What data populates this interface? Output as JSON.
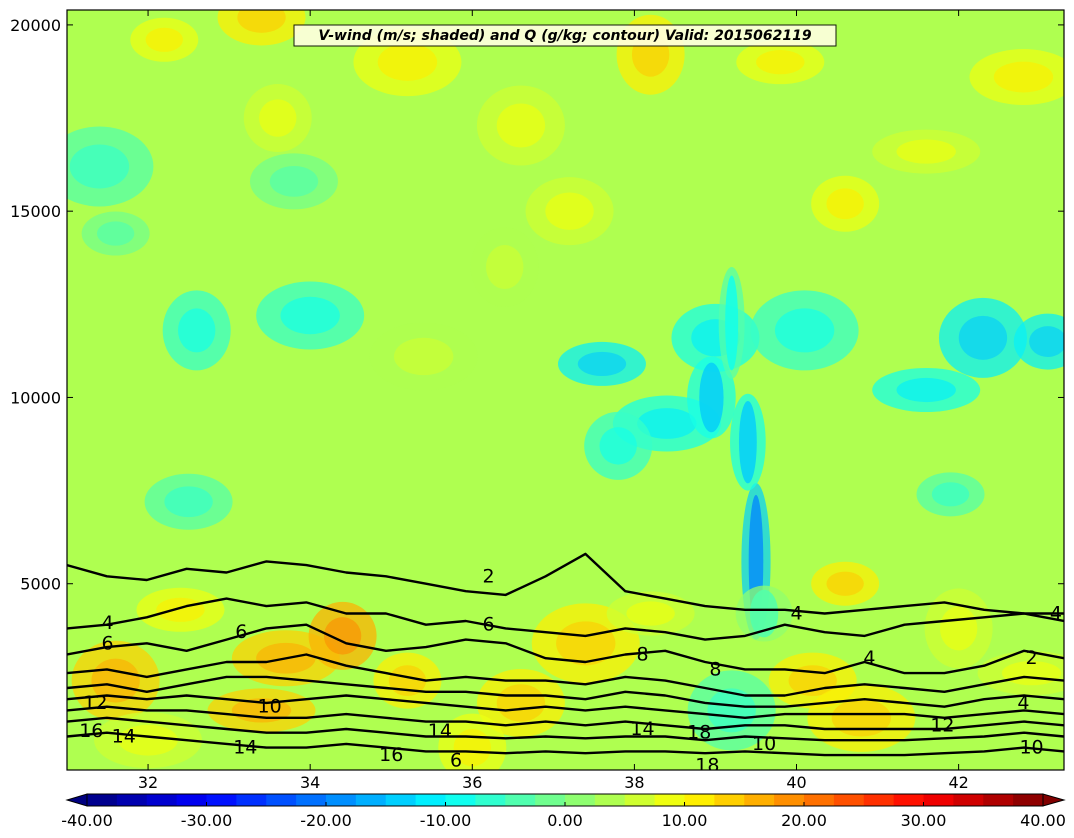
{
  "chart_data": {
    "type": "heatmap",
    "title": "V-wind (m/s; shaded) and Q (g/kg; contour) Valid: 2015062119",
    "xlabel": "",
    "ylabel": "",
    "xlim": [
      31.0,
      43.3
    ],
    "ylim": [
      0,
      20400
    ],
    "x_ticks": [
      "32",
      "34",
      "36",
      "38",
      "40",
      "42"
    ],
    "y_ticks": [
      "5000",
      "10000",
      "15000",
      "20000"
    ],
    "colorbar": {
      "min": -40,
      "max": 40,
      "step": 2.5,
      "extend": "both",
      "tick_labels": [
        "-40.00",
        "-30.00",
        "-20.00",
        "-10.00",
        "0.00",
        "10.00",
        "20.00",
        "30.00",
        "40.00"
      ]
    },
    "shaded_field": {
      "name": "V-wind (m/s)",
      "background": 3,
      "blobs": [
        {
          "x": 32.2,
          "y": 19600,
          "v": 8
        },
        {
          "x": 33.4,
          "y": 20200,
          "v": 10
        },
        {
          "x": 35.2,
          "y": 19000,
          "v": 8
        },
        {
          "x": 38.2,
          "y": 19200,
          "v": 10
        },
        {
          "x": 39.8,
          "y": 19000,
          "v": 9
        },
        {
          "x": 42.8,
          "y": 18600,
          "v": 8
        },
        {
          "x": 33.6,
          "y": 17500,
          "v": 6
        },
        {
          "x": 36.6,
          "y": 17300,
          "v": 5
        },
        {
          "x": 41.6,
          "y": 16600,
          "v": 7
        },
        {
          "x": 40.6,
          "y": 15200,
          "v": 9
        },
        {
          "x": 37.2,
          "y": 15000,
          "v": 6
        },
        {
          "x": 31.4,
          "y": 16200,
          "v": -3
        },
        {
          "x": 31.6,
          "y": 14400,
          "v": -2
        },
        {
          "x": 33.8,
          "y": 15800,
          "v": -1
        },
        {
          "x": 34.0,
          "y": 12200,
          "v": -7
        },
        {
          "x": 32.6,
          "y": 11800,
          "v": -6
        },
        {
          "x": 37.6,
          "y": 10900,
          "v": -11
        },
        {
          "x": 38.4,
          "y": 9300,
          "v": -9
        },
        {
          "x": 37.8,
          "y": 8700,
          "v": -7
        },
        {
          "x": 42.3,
          "y": 11600,
          "v": -12
        },
        {
          "x": 41.6,
          "y": 10200,
          "v": -8
        },
        {
          "x": 43.1,
          "y": 11500,
          "v": -12
        },
        {
          "x": 39.0,
          "y": 11600,
          "v": -9
        },
        {
          "x": 40.1,
          "y": 11800,
          "v": -6
        },
        {
          "x": 41.9,
          "y": 7400,
          "v": -5
        },
        {
          "x": 32.5,
          "y": 7200,
          "v": -4
        },
        {
          "x": 35.4,
          "y": 11100,
          "v": 4
        },
        {
          "x": 36.4,
          "y": 13500,
          "v": 3
        },
        {
          "x": 32.4,
          "y": 4300,
          "v": 9
        },
        {
          "x": 33.7,
          "y": 3000,
          "v": 14
        },
        {
          "x": 34.4,
          "y": 3600,
          "v": 15
        },
        {
          "x": 31.6,
          "y": 2400,
          "v": 13
        },
        {
          "x": 33.4,
          "y": 1600,
          "v": 14
        },
        {
          "x": 35.2,
          "y": 2400,
          "v": 11
        },
        {
          "x": 36.6,
          "y": 1800,
          "v": 12
        },
        {
          "x": 37.4,
          "y": 3400,
          "v": 10
        },
        {
          "x": 40.6,
          "y": 5000,
          "v": 12
        },
        {
          "x": 40.2,
          "y": 2400,
          "v": 12
        },
        {
          "x": 40.8,
          "y": 1400,
          "v": 11
        },
        {
          "x": 42.0,
          "y": 3800,
          "v": 6
        },
        {
          "x": 38.2,
          "y": 4200,
          "v": 6
        },
        {
          "x": 32.0,
          "y": 800,
          "v": 6
        },
        {
          "x": 36.0,
          "y": 600,
          "v": 8
        },
        {
          "x": 39.2,
          "y": 1600,
          "v": -3
        },
        {
          "x": 42.9,
          "y": 2600,
          "v": 7
        }
      ],
      "streaks": [
        {
          "x": 39.5,
          "y": 5600,
          "height": 4200,
          "width": 0.18,
          "v": -18
        },
        {
          "x": 39.4,
          "y": 8800,
          "height": 2600,
          "width": 0.22,
          "v": -14
        },
        {
          "x": 38.95,
          "y": 10000,
          "height": 2200,
          "width": 0.3,
          "v": -15
        },
        {
          "x": 39.2,
          "y": 12000,
          "height": 3000,
          "width": 0.16,
          "v": -8
        },
        {
          "x": 39.6,
          "y": 4200,
          "height": 1500,
          "width": 0.35,
          "v": -5
        }
      ]
    },
    "contour_field": {
      "name": "Q (g/kg)",
      "levels": [
        {
          "label": "2",
          "heights": [
            5500,
            5200,
            5100,
            5400,
            5300,
            5600,
            5500,
            5300,
            5200,
            5000,
            4800,
            4700,
            5200,
            5800,
            4800,
            4600,
            4400,
            4300,
            4300,
            4200,
            4300,
            4400,
            4500,
            4300,
            4200,
            4200
          ]
        },
        {
          "label": "4",
          "heights": [
            3800,
            3900,
            4100,
            4400,
            4600,
            4400,
            4500,
            4200,
            4200,
            3900,
            4000,
            3800,
            3700,
            3600,
            3800,
            3700,
            3500,
            3600,
            3900,
            3700,
            3600,
            3900,
            4000,
            4100,
            4200,
            4000
          ]
        },
        {
          "label": "6",
          "heights": [
            3100,
            3300,
            3400,
            3200,
            3500,
            3800,
            3900,
            3400,
            3200,
            3300,
            3500,
            3400,
            3000,
            2900,
            3100,
            3200,
            2900,
            2700,
            2700,
            2600,
            2900,
            2600,
            2600,
            2800,
            3200,
            3000
          ]
        },
        {
          "label": "8",
          "heights": [
            2600,
            2700,
            2500,
            2700,
            2900,
            2900,
            3100,
            2800,
            2600,
            2400,
            2500,
            2400,
            2400,
            2300,
            2500,
            2400,
            2200,
            2000,
            2000,
            2200,
            2300,
            2200,
            2100,
            2300,
            2500,
            2400
          ]
        },
        {
          "label": "10",
          "heights": [
            2200,
            2300,
            2100,
            2300,
            2500,
            2500,
            2400,
            2300,
            2200,
            2100,
            2100,
            2000,
            2000,
            1900,
            2100,
            2000,
            1800,
            1700,
            1700,
            1800,
            1900,
            1800,
            1700,
            1900,
            2000,
            1900
          ]
        },
        {
          "label": "12",
          "heights": [
            1900,
            2000,
            1900,
            2000,
            1900,
            1800,
            1900,
            2000,
            1900,
            1800,
            1700,
            1600,
            1700,
            1600,
            1700,
            1600,
            1500,
            1400,
            1500,
            1500,
            1500,
            1500,
            1400,
            1500,
            1600,
            1500
          ]
        },
        {
          "label": "14",
          "heights": [
            1600,
            1700,
            1600,
            1600,
            1500,
            1400,
            1400,
            1500,
            1400,
            1300,
            1300,
            1200,
            1300,
            1200,
            1300,
            1200,
            1100,
            1200,
            1200,
            1100,
            1100,
            1100,
            1100,
            1200,
            1300,
            1200
          ]
        },
        {
          "label": "16",
          "heights": [
            1300,
            1400,
            1300,
            1200,
            1100,
            1000,
            1000,
            1100,
            1000,
            900,
            900,
            850,
            900,
            850,
            900,
            900,
            800,
            900,
            850,
            800,
            800,
            800,
            850,
            900,
            1000,
            900
          ]
        },
        {
          "label": "18",
          "heights": [
            900,
            1000,
            900,
            800,
            700,
            600,
            600,
            700,
            600,
            500,
            500,
            450,
            500,
            450,
            500,
            500,
            450,
            500,
            450,
            400,
            400,
            400,
            450,
            500,
            600,
            500
          ]
        }
      ],
      "inline_labels": [
        {
          "text": "4",
          "x": 31.5,
          "y": 3950
        },
        {
          "text": "6",
          "x": 31.5,
          "y": 3400
        },
        {
          "text": "12",
          "x": 31.35,
          "y": 1800
        },
        {
          "text": "16",
          "x": 31.3,
          "y": 1050
        },
        {
          "text": "14",
          "x": 31.7,
          "y": 900
        },
        {
          "text": "6",
          "x": 33.15,
          "y": 3700
        },
        {
          "text": "10",
          "x": 33.5,
          "y": 1700
        },
        {
          "text": "14",
          "x": 33.2,
          "y": 600
        },
        {
          "text": "16",
          "x": 35.0,
          "y": 400
        },
        {
          "text": "14",
          "x": 35.6,
          "y": 1050
        },
        {
          "text": "6",
          "x": 35.8,
          "y": 250
        },
        {
          "text": "2",
          "x": 36.2,
          "y": 5200
        },
        {
          "text": "6",
          "x": 36.2,
          "y": 3900
        },
        {
          "text": "8",
          "x": 38.1,
          "y": 3100
        },
        {
          "text": "14",
          "x": 38.1,
          "y": 1100
        },
        {
          "text": "18",
          "x": 38.8,
          "y": 1000
        },
        {
          "text": "18",
          "x": 38.9,
          "y": 120
        },
        {
          "text": "10",
          "x": 39.6,
          "y": 700
        },
        {
          "text": "4",
          "x": 40.0,
          "y": 4200
        },
        {
          "text": "8",
          "x": 39.0,
          "y": 2700
        },
        {
          "text": "10",
          "x": 42.9,
          "y": 600
        },
        {
          "text": "4",
          "x": 42.8,
          "y": 1800
        },
        {
          "text": "2",
          "x": 42.9,
          "y": 3000
        },
        {
          "text": "4",
          "x": 43.2,
          "y": 4200
        },
        {
          "text": "12",
          "x": 41.8,
          "y": 1200
        },
        {
          "text": "4",
          "x": 40.9,
          "y": 3000
        }
      ]
    }
  }
}
